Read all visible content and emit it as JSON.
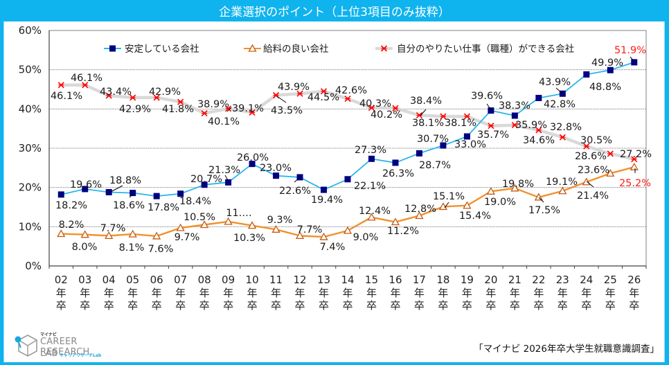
{
  "header": {
    "title": "企業選択のポイント（上位3項目のみ抜粋）"
  },
  "source": "「マイナビ 2026年卒大学生就職意識調査」",
  "logo": {
    "brand": "マイナビ",
    "name": "CAREER RESEARCH",
    "lab": "LAB",
    "sub": "キャリアリサーチLab"
  },
  "colors": {
    "frame": "#0fb3ee",
    "stable": "#29b6ea",
    "stable_marker": "#000080",
    "salary": "#f0912c",
    "salary_marker": "#c55a11",
    "desired": "#d9d9d9",
    "desired_marker": "#ff0000",
    "highlight_label": "#ff1a1a"
  },
  "chart_data": {
    "type": "line",
    "title": "企業選択のポイント（上位3項目のみ抜粋）",
    "xlabel": "",
    "ylabel": "",
    "ylim": [
      0,
      60
    ],
    "yticks": [
      "0%",
      "10%",
      "20%",
      "30%",
      "40%",
      "50%",
      "60%"
    ],
    "grid": true,
    "legend_position": "top",
    "categories": [
      "02",
      "03",
      "04",
      "05",
      "06",
      "07",
      "08",
      "09",
      "10",
      "11",
      "12",
      "13",
      "14",
      "15",
      "16",
      "17",
      "18",
      "19",
      "20",
      "21",
      "22",
      "23",
      "24",
      "25",
      "26"
    ],
    "category_suffix": [
      "年",
      "卒"
    ],
    "series": [
      {
        "name": "安定している会社",
        "marker": "square",
        "values": [
          18.2,
          19.6,
          18.8,
          18.6,
          17.8,
          18.4,
          20.7,
          21.3,
          26.0,
          23.0,
          22.6,
          19.4,
          22.1,
          27.3,
          26.3,
          28.7,
          30.7,
          33.0,
          39.6,
          38.3,
          42.8,
          43.9,
          48.8,
          49.9,
          51.9
        ],
        "labels": [
          "18.2%",
          "19.6%",
          "18.8%",
          "18.6%",
          "17.8%",
          "18.4%",
          "20.7%",
          "21.3%",
          "26.0%",
          "23.0%",
          "22.6%",
          "19.4%",
          "22.1%",
          "27.3%",
          "26.3%",
          "28.7%",
          "30.7%",
          "33.0%",
          "39.6%",
          "38.3%",
          "42.8%",
          "43.9%",
          "48.8%",
          "49.9%",
          "51.9%"
        ]
      },
      {
        "name": "給料の良い会社",
        "marker": "triangle",
        "values": [
          8.2,
          8.0,
          7.7,
          8.1,
          7.6,
          9.7,
          10.5,
          11.3,
          10.3,
          9.3,
          7.7,
          7.4,
          9.0,
          12.4,
          11.2,
          12.8,
          15.1,
          15.4,
          19.0,
          19.8,
          17.5,
          19.1,
          21.4,
          23.6,
          25.2
        ],
        "labels": [
          "8.2%",
          "8.0%",
          "7.7%",
          "8.1%",
          "7.6%",
          "9.7%",
          "10.5%",
          "11.…",
          "10.3%",
          "9.3%",
          "7.7%",
          "7.4%",
          "9.0%",
          "12.4%",
          "11.2%",
          "12.8%",
          "15.1%",
          "15.4%",
          "19.0%",
          "19.8%",
          "17.5%",
          "19.1%",
          "21.4%",
          "23.6%",
          "25.2%"
        ]
      },
      {
        "name": "自分のやりたい仕事（職種）ができる会社",
        "marker": "x",
        "values": [
          46.1,
          46.1,
          43.4,
          42.9,
          42.9,
          41.8,
          38.9,
          40.1,
          39.1,
          43.5,
          43.9,
          44.5,
          42.6,
          40.3,
          40.2,
          38.4,
          38.1,
          38.1,
          35.7,
          35.9,
          34.6,
          32.8,
          30.5,
          28.6,
          27.2
        ],
        "labels": [
          "46.1%",
          "46.1%",
          "43.4%",
          "42.9%",
          "42.9%",
          "41.8%",
          "38.9%",
          "40.1%",
          "39.1%",
          "43.5%",
          "43.9%",
          "44.5%",
          "42.6%",
          "40.3%",
          "40.2%",
          "38.4%",
          "38.1%",
          "38.1%",
          "35.7%",
          "35.9%",
          "34.6%",
          "32.8%",
          "30.5%",
          "28.6%",
          "27.2%"
        ]
      }
    ]
  }
}
